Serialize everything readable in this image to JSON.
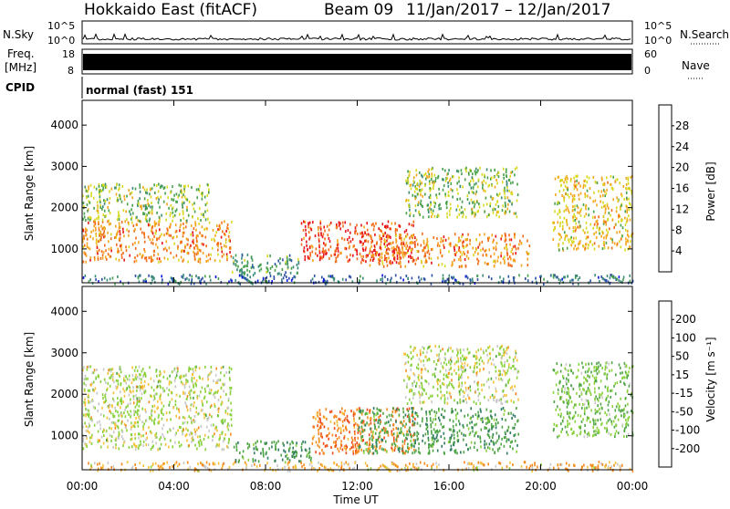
{
  "header": {
    "station": "Hokkaido East (fitACF)",
    "beam": "Beam 09",
    "date_range": "11/Jan/2017 – 12/Jan/2017"
  },
  "strips": {
    "nsky_label": "N.Sky",
    "nsky_ticks": [
      "10^5",
      "10^0"
    ],
    "nsearch_label": "N.Search",
    "freq_label_1": "Freq.",
    "freq_label_2": "[MHz]",
    "freq_ticks": [
      "18",
      "8"
    ],
    "nave_ticks": [
      "60",
      "0"
    ],
    "nave_label": "Nave",
    "cpid_label": "CPID",
    "cpid_text": "normal (fast) 151"
  },
  "axes": {
    "y_label": "Slant Range [km]",
    "x_label": "Time UT",
    "y_ticks": [
      1000,
      2000,
      3000,
      4000
    ],
    "y_range": [
      180,
      4600
    ],
    "x_ticks": [
      "00:00",
      "04:00",
      "08:00",
      "12:00",
      "16:00",
      "20:00",
      "00:00"
    ],
    "x_range_hours": [
      0,
      24
    ]
  },
  "power_scale": {
    "label": "Power [dB]",
    "ticks": [
      "4",
      "8",
      "12",
      "16",
      "20",
      "24",
      "28"
    ],
    "colors": [
      "#0a14e6",
      "#2d50a8",
      "#3a8a7a",
      "#47a04a",
      "#d8d820",
      "#f3a51c",
      "#f26c1a",
      "#e6141a"
    ]
  },
  "velocity_scale": {
    "label": "Velocity [m s⁻¹]",
    "ticks": [
      "200",
      "100",
      "50",
      "15",
      "-15",
      "-50",
      "-100",
      "-200"
    ],
    "colors": [
      "#1e32c8",
      "#2f7a62",
      "#4fa546",
      "#8ad23c",
      "#c8c8c8",
      "#f5c23a",
      "#f58a1e",
      "#f04a1a",
      "#e6141a"
    ]
  },
  "chart_data": [
    {
      "type": "heatmap",
      "title": "",
      "xlabel": "Time UT",
      "ylabel": "Slant Range [km]",
      "colorbar_label": "Power [dB]",
      "xlim_hours": [
        0,
        24
      ],
      "ylim": [
        180,
        4600
      ],
      "regions": [
        {
          "t0": 0.0,
          "t1": 6.5,
          "r0": 700,
          "r1": 1700,
          "value": 24
        },
        {
          "t0": 0.0,
          "t1": 5.5,
          "r0": 1700,
          "r1": 2600,
          "value": 16
        },
        {
          "t0": 6.5,
          "t1": 9.5,
          "r0": 400,
          "r1": 900,
          "value": 12
        },
        {
          "t0": 9.5,
          "t1": 14.5,
          "r0": 700,
          "r1": 1700,
          "value": 28
        },
        {
          "t0": 12.5,
          "t1": 19.5,
          "r0": 600,
          "r1": 1400,
          "value": 24
        },
        {
          "t0": 14.0,
          "t1": 19.0,
          "r0": 1800,
          "r1": 3000,
          "value": 16
        },
        {
          "t0": 20.5,
          "t1": 24.0,
          "r0": 1000,
          "r1": 2800,
          "value": 20
        },
        {
          "t0": 0.0,
          "t1": 24.0,
          "r0": 180,
          "r1": 400,
          "value": 8
        }
      ]
    },
    {
      "type": "heatmap",
      "title": "",
      "xlabel": "Time UT",
      "ylabel": "Slant Range [km]",
      "colorbar_label": "Velocity [m s⁻¹]",
      "xlim_hours": [
        0,
        24
      ],
      "ylim": [
        180,
        4600
      ],
      "regions": [
        {
          "t0": 0.0,
          "t1": 6.5,
          "r0": 700,
          "r1": 2700,
          "value": 0
        },
        {
          "t0": 6.5,
          "t1": 10.0,
          "r0": 400,
          "r1": 900,
          "value": 60
        },
        {
          "t0": 10.0,
          "t1": 14.5,
          "r0": 600,
          "r1": 1700,
          "value": -60
        },
        {
          "t0": 12.0,
          "t1": 19.0,
          "r0": 600,
          "r1": 1700,
          "value": 60
        },
        {
          "t0": 14.0,
          "t1": 19.0,
          "r0": 1800,
          "r1": 3200,
          "value": 0
        },
        {
          "t0": 20.5,
          "t1": 24.0,
          "r0": 1000,
          "r1": 2800,
          "value": 30
        },
        {
          "t0": 0.0,
          "t1": 24.0,
          "r0": 180,
          "r1": 400,
          "value": -30
        }
      ]
    }
  ]
}
